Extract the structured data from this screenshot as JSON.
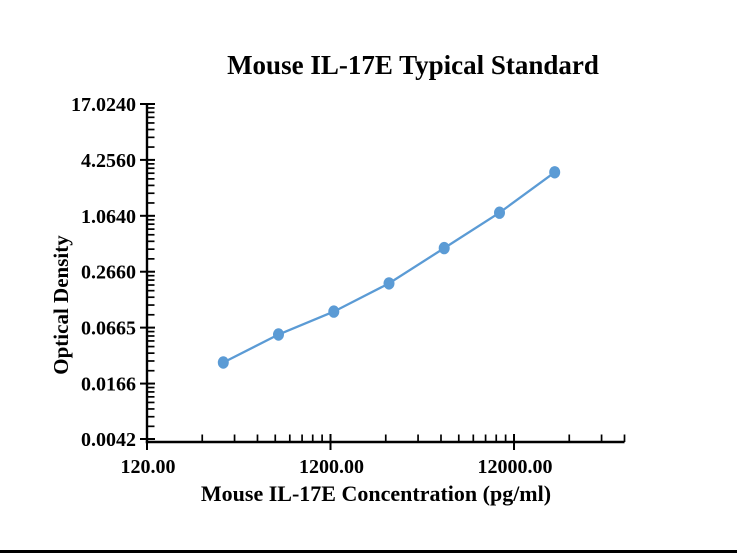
{
  "figure": {
    "background": "#ffffff",
    "bottom_border_color": "#000000"
  },
  "chart_data": {
    "type": "line",
    "title": "Mouse IL-17E Typical Standard",
    "xlabel": "Mouse IL-17E Concentration (pg/ml)",
    "ylabel": "Optical Density",
    "x_scale": "log",
    "y_scale": "log",
    "xlim": [
      120,
      48000
    ],
    "ylim": [
      0.0042,
      17.024
    ],
    "grid": false,
    "legend": "none",
    "colors": {
      "axis": "#000000",
      "text": "#000000",
      "curve": "#5B9BD5"
    },
    "x_ticks": [
      {
        "value": 120,
        "label": "120.00"
      },
      {
        "value": 1200,
        "label": "1200.00"
      },
      {
        "value": 12000,
        "label": "12000.00"
      }
    ],
    "y_ticks": [
      {
        "value": 0.0042,
        "label": "0.0042"
      },
      {
        "value": 0.0166,
        "label": "0.0166"
      },
      {
        "value": 0.0665,
        "label": "0.0665"
      },
      {
        "value": 0.266,
        "label": "0.2660"
      },
      {
        "value": 1.064,
        "label": "1.0640"
      },
      {
        "value": 4.256,
        "label": "4.2560"
      },
      {
        "value": 17.024,
        "label": "17.0240"
      }
    ],
    "series": [
      {
        "name": "Typical Standard",
        "color": "#5B9BD5",
        "marker": "ellipse",
        "points": [
          {
            "x": 312.5,
            "y": 0.028
          },
          {
            "x": 625,
            "y": 0.056
          },
          {
            "x": 1250,
            "y": 0.099
          },
          {
            "x": 2500,
            "y": 0.199
          },
          {
            "x": 5000,
            "y": 0.478
          },
          {
            "x": 10000,
            "y": 1.15
          },
          {
            "x": 20000,
            "y": 3.13
          }
        ]
      }
    ]
  }
}
